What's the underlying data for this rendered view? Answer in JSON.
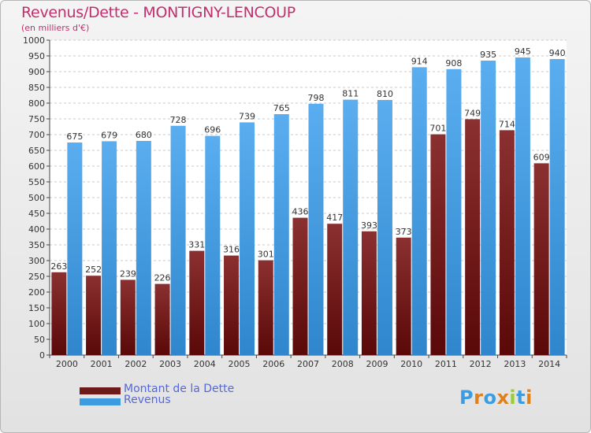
{
  "header": {
    "title": "Revenus/Dette - MONTIGNY-LENCOUP",
    "subtitle": "(en milliers d'€)"
  },
  "legend": [
    {
      "label": "Montant de la Dette",
      "color": "#6e1a1a"
    },
    {
      "label": "Revenus",
      "color": "#3d9ce0"
    }
  ],
  "logo": {
    "text": "Proxiti",
    "letters": [
      "P",
      "r",
      "o",
      "x",
      "i",
      "t",
      "i"
    ],
    "colors": [
      "#3d9ce0",
      "#e0801a",
      "#3d9ce0",
      "#e0801a",
      "#9acd32",
      "#3d9ce0",
      "#e0801a"
    ]
  },
  "chart_data": {
    "type": "bar",
    "title": "Revenus/Dette - MONTIGNY-LENCOUP",
    "ylabel": "(en milliers d'€)",
    "categories": [
      "2000",
      "2001",
      "2002",
      "2003",
      "2004",
      "2005",
      "2006",
      "2007",
      "2008",
      "2009",
      "2010",
      "2011",
      "2012",
      "2013",
      "2014"
    ],
    "series": [
      {
        "name": "Montant de la Dette",
        "color_top": "#8b3030",
        "color_bottom": "#5a0808",
        "values": [
          263,
          252,
          239,
          226,
          331,
          316,
          301,
          436,
          417,
          393,
          373,
          701,
          749,
          714,
          609
        ]
      },
      {
        "name": "Revenus",
        "color_top": "#5aaef0",
        "color_bottom": "#2f86cc",
        "values": [
          675,
          679,
          680,
          728,
          696,
          739,
          765,
          798,
          811,
          810,
          914,
          908,
          935,
          945,
          940
        ]
      }
    ],
    "ylim": [
      0,
      1000
    ],
    "ytick_step": 50,
    "grid": true,
    "legend_position": "bottom-left"
  }
}
